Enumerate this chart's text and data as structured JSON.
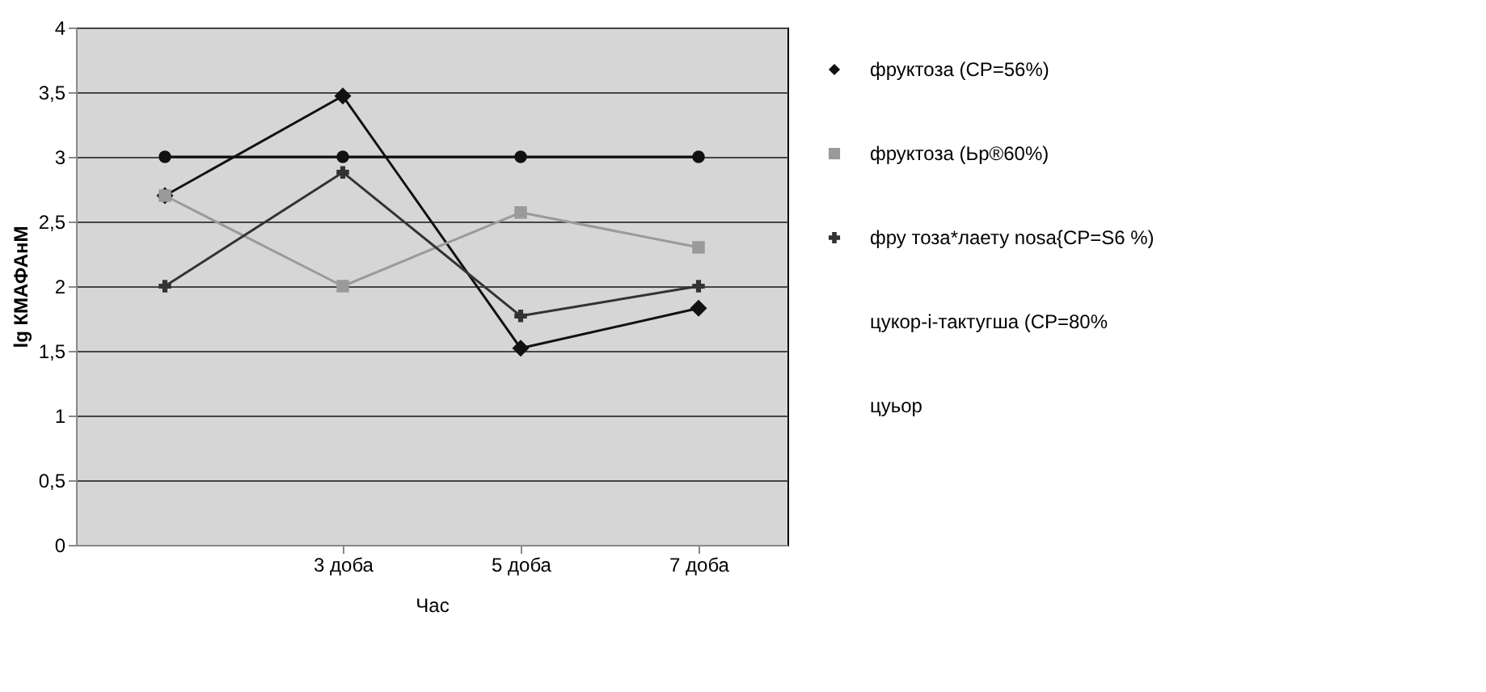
{
  "chart_data": {
    "type": "line",
    "xlabel": "Час",
    "ylabel": "lg КМАФАнМ",
    "categories": [
      null,
      "3 доба",
      "5 доба",
      "7 доба"
    ],
    "series": [
      {
        "name": "фруктоза (СР=56%)",
        "color": "#111111",
        "marker": "diamond",
        "values": [
          2.7,
          3.47,
          1.52,
          1.83
        ]
      },
      {
        "name": "фруктоза (Ьр®60%)",
        "color": "#9a9a9a",
        "marker": "square",
        "values": [
          2.7,
          2.0,
          2.57,
          2.3
        ]
      },
      {
        "name": "фру тоза*лаету nosa{CP=S6 %)",
        "color": "#333333",
        "marker": "cross",
        "values": [
          2.0,
          2.88,
          1.77,
          2.0
        ]
      },
      {
        "color": "#111111",
        "marker": "circle",
        "values": [
          3.0,
          3.0,
          3.0,
          3.0
        ]
      }
    ],
    "annotations": [
      "цукор-і-тактугша (CP=80%",
      "цуьор"
    ],
    "ylim": [
      0,
      4
    ],
    "yticks": [
      0,
      {
        "value": 0.5,
        "label": "0,5"
      },
      1,
      {
        "value": 1.5,
        "label": "1,5"
      },
      2,
      {
        "value": 2.5,
        "label": "2,5"
      },
      3,
      {
        "value": 3.5,
        "label": "3,5"
      },
      4
    ],
    "grid": "y",
    "legend": "right",
    "line_style": "solid"
  }
}
